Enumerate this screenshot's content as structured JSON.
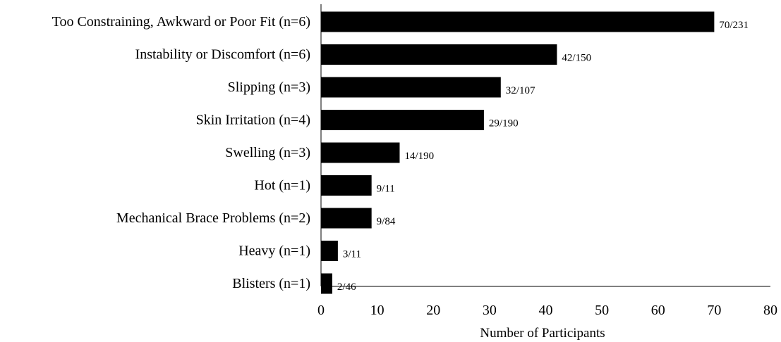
{
  "chart_data": {
    "type": "bar",
    "orientation": "horizontal",
    "categories": [
      "Too Constraining, Awkward or Poor Fit (n=6)",
      "Instability or Discomfort (n=6)",
      "Slipping (n=3)",
      "Skin Irritation (n=4)",
      "Swelling (n=3)",
      "Hot (n=1)",
      "Mechanical Brace Problems (n=2)",
      "Heavy (n=1)",
      "Blisters (n=1)"
    ],
    "values": [
      70,
      42,
      32,
      29,
      14,
      9,
      9,
      3,
      2
    ],
    "data_labels": [
      "70/231",
      "42/150",
      "32/107",
      "29/190",
      "14/190",
      "9/11",
      "9/84",
      "3/11",
      "2/46"
    ],
    "xlabel": "Number of Participants",
    "ylabel": "",
    "xlim": [
      0,
      80
    ],
    "xticks": [
      "0",
      "10",
      "20",
      "30",
      "40",
      "50",
      "60",
      "70",
      "80"
    ],
    "grid": false,
    "legend": "none",
    "bar_color": "#000000"
  }
}
